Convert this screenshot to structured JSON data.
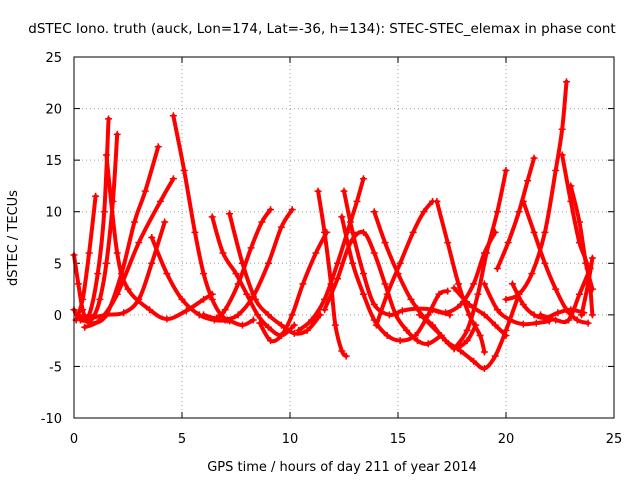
{
  "chart_data": {
    "type": "scatter",
    "title": "dSTEC Iono. truth (auck, Lon=174, Lat=-36, h=134): STEC-STEC_elemax in phase cont",
    "xlabel": "GPS time / hours of day 211 of year 2014",
    "ylabel": "dSTEC  / TECUs",
    "xlim": [
      0,
      25
    ],
    "ylim": [
      -10,
      25
    ],
    "xticks": [
      0,
      5,
      10,
      15,
      20,
      25
    ],
    "yticks": [
      -10,
      -5,
      0,
      5,
      10,
      15,
      20,
      25
    ],
    "xtick_labels": [
      "0",
      "5",
      "10",
      "15",
      "20",
      "25"
    ],
    "ytick_labels": [
      "-10",
      "-5",
      "0",
      "5",
      "10",
      "15",
      "20",
      "25"
    ],
    "grid": true,
    "legend": "none",
    "marker": "+",
    "color": "#ff0000",
    "series": [
      {
        "points": [
          [
            0,
            5.8
          ],
          [
            0.2,
            3
          ],
          [
            0.4,
            0.5
          ],
          [
            0.6,
            -0.5
          ],
          [
            0.9,
            -0.2
          ],
          [
            1.2,
            1.5
          ],
          [
            1.5,
            5
          ],
          [
            1.8,
            11
          ],
          [
            2.0,
            17.5
          ]
        ]
      },
      {
        "points": [
          [
            0.1,
            -0.5
          ],
          [
            0.4,
            1.5
          ],
          [
            0.7,
            6
          ],
          [
            1.0,
            11.5
          ]
        ]
      },
      {
        "points": [
          [
            0,
            0.5
          ],
          [
            0.3,
            -0.5
          ],
          [
            0.7,
            0
          ],
          [
            1.1,
            4
          ],
          [
            1.4,
            10
          ],
          [
            1.6,
            19
          ]
        ]
      },
      {
        "points": [
          [
            0.2,
            0
          ],
          [
            0.8,
            -0.8
          ],
          [
            1.5,
            0
          ],
          [
            2.2,
            4
          ],
          [
            2.8,
            9
          ],
          [
            3.3,
            12
          ],
          [
            3.9,
            16.3
          ]
        ]
      },
      {
        "points": [
          [
            1.5,
            15.5
          ],
          [
            2.0,
            6
          ],
          [
            2.5,
            2.5
          ],
          [
            3.5,
            0.5
          ],
          [
            4.3,
            -0.4
          ],
          [
            5.2,
            0.4
          ],
          [
            6.0,
            1.5
          ],
          [
            6.4,
            2
          ]
        ]
      },
      {
        "points": [
          [
            0.5,
            -1.2
          ],
          [
            1.2,
            -0.5
          ],
          [
            2.0,
            2
          ],
          [
            3.0,
            7
          ],
          [
            4.0,
            11
          ],
          [
            4.6,
            13.2
          ]
        ]
      },
      {
        "points": [
          [
            0.8,
            -0.3
          ],
          [
            1.5,
            0
          ],
          [
            2.3,
            0.2
          ],
          [
            3.0,
            1.5
          ],
          [
            3.6,
            5
          ],
          [
            4.2,
            9
          ]
        ]
      },
      {
        "points": [
          [
            4.6,
            19.3
          ],
          [
            5.1,
            14
          ],
          [
            5.6,
            8
          ],
          [
            6.0,
            4
          ],
          [
            6.4,
            1.5
          ],
          [
            6.8,
            0
          ],
          [
            7.1,
            -0.5
          ]
        ]
      },
      {
        "points": [
          [
            3.6,
            7.5
          ],
          [
            4.3,
            4
          ],
          [
            5.0,
            1.5
          ],
          [
            5.8,
            0
          ],
          [
            6.5,
            -0.5
          ],
          [
            7.2,
            -0.6
          ],
          [
            7.8,
            -1.0
          ],
          [
            8.3,
            -0.5
          ]
        ]
      },
      {
        "points": [
          [
            6.4,
            9.5
          ],
          [
            6.9,
            6
          ],
          [
            7.5,
            4
          ],
          [
            8.0,
            2
          ],
          [
            8.5,
            0
          ],
          [
            9.0,
            -1.2
          ],
          [
            9.6,
            -2.0
          ],
          [
            10.2,
            -1.0
          ]
        ]
      },
      {
        "points": [
          [
            7.2,
            9.8
          ],
          [
            7.8,
            5
          ],
          [
            8.4,
            1.5
          ],
          [
            9.0,
            0
          ],
          [
            9.6,
            -1.0
          ],
          [
            10.2,
            -1.8
          ],
          [
            10.8,
            -1.5
          ],
          [
            11.4,
            0
          ]
        ]
      },
      {
        "points": [
          [
            6.0,
            0
          ],
          [
            6.6,
            -0.3
          ],
          [
            7.0,
            0.5
          ],
          [
            7.6,
            3
          ],
          [
            8.2,
            6.5
          ],
          [
            8.7,
            9
          ],
          [
            9.1,
            10.2
          ]
        ]
      },
      {
        "points": [
          [
            7.0,
            -0.5
          ],
          [
            7.6,
            0
          ],
          [
            8.3,
            1.8
          ],
          [
            9.0,
            5
          ],
          [
            9.6,
            8.5
          ],
          [
            10.1,
            10.2
          ]
        ]
      },
      {
        "points": [
          [
            8.6,
            -0.8
          ],
          [
            9.1,
            -2.5
          ],
          [
            9.6,
            -2.0
          ],
          [
            10.1,
            0
          ],
          [
            10.6,
            3
          ],
          [
            11.2,
            6
          ],
          [
            11.7,
            8
          ]
        ]
      },
      {
        "points": [
          [
            10.4,
            -1.5
          ],
          [
            11.0,
            -0.5
          ],
          [
            11.6,
            1.5
          ],
          [
            12.2,
            5
          ],
          [
            12.8,
            9
          ],
          [
            13.1,
            11
          ],
          [
            13.4,
            13.2
          ]
        ]
      },
      {
        "points": [
          [
            11.3,
            12
          ],
          [
            11.6,
            8
          ],
          [
            11.9,
            3
          ],
          [
            12.1,
            -1
          ],
          [
            12.4,
            -3.5
          ],
          [
            12.6,
            -4
          ]
        ]
      },
      {
        "points": [
          [
            11.6,
            0.5
          ],
          [
            12.2,
            3.5
          ],
          [
            12.8,
            7
          ],
          [
            13.4,
            8
          ],
          [
            13.9,
            6
          ],
          [
            14.4,
            3
          ],
          [
            14.9,
            0
          ],
          [
            15.4,
            -1.5
          ],
          [
            15.9,
            -2.5
          ],
          [
            16.4,
            -2.8
          ],
          [
            17.0,
            -2
          ]
        ]
      },
      {
        "points": [
          [
            12.5,
            12
          ],
          [
            12.9,
            8
          ],
          [
            13.4,
            4
          ],
          [
            13.9,
            1
          ],
          [
            14.6,
            0
          ],
          [
            15.2,
            0.4
          ],
          [
            15.9,
            0.6
          ],
          [
            16.6,
            0.5
          ],
          [
            17.4,
            0
          ]
        ]
      },
      {
        "points": [
          [
            13.9,
            10
          ],
          [
            14.4,
            7
          ],
          [
            15.0,
            4
          ],
          [
            15.6,
            1.5
          ],
          [
            16.3,
            -0.5
          ],
          [
            17.0,
            -2
          ],
          [
            17.6,
            -3.2
          ],
          [
            18.2,
            -2.5
          ],
          [
            18.6,
            -1
          ]
        ]
      },
      {
        "points": [
          [
            14.0,
            -1
          ],
          [
            14.5,
            2
          ],
          [
            15.1,
            5
          ],
          [
            15.7,
            8
          ],
          [
            16.2,
            10
          ],
          [
            16.6,
            11
          ]
        ]
      },
      {
        "points": [
          [
            12.4,
            9.5
          ],
          [
            12.9,
            5
          ],
          [
            13.4,
            2
          ],
          [
            13.9,
            -0.5
          ],
          [
            14.5,
            -2
          ],
          [
            15.1,
            -2.5
          ],
          [
            15.8,
            -2
          ],
          [
            16.4,
            0
          ],
          [
            16.9,
            2
          ],
          [
            17.3,
            2.3
          ]
        ]
      },
      {
        "points": [
          [
            16.8,
            11
          ],
          [
            17.3,
            7
          ],
          [
            17.8,
            3
          ],
          [
            18.3,
            0
          ],
          [
            18.8,
            -2
          ],
          [
            19.0,
            -3.6
          ]
        ]
      },
      {
        "points": [
          [
            16.0,
            0
          ],
          [
            16.6,
            -1
          ],
          [
            17.2,
            -2.5
          ],
          [
            17.9,
            -3.5
          ],
          [
            18.5,
            -4.5
          ],
          [
            19.0,
            -5.2
          ],
          [
            19.5,
            -4
          ],
          [
            20.0,
            -1.5
          ],
          [
            20.6,
            2
          ]
        ]
      },
      {
        "points": [
          [
            16.6,
            0.5
          ],
          [
            17.2,
            0.2
          ],
          [
            17.9,
            1
          ],
          [
            18.5,
            3
          ],
          [
            19.0,
            6
          ],
          [
            19.5,
            8
          ]
        ]
      },
      {
        "points": [
          [
            17.6,
            -3.3
          ],
          [
            18.2,
            -1.5
          ],
          [
            18.7,
            2
          ],
          [
            19.1,
            6
          ],
          [
            19.6,
            10
          ],
          [
            20.0,
            14
          ]
        ]
      },
      {
        "points": [
          [
            17.6,
            2.6
          ],
          [
            18.3,
            1
          ],
          [
            19.0,
            0
          ],
          [
            19.5,
            -1
          ],
          [
            20.0,
            -2
          ]
        ]
      },
      {
        "points": [
          [
            19.0,
            3
          ],
          [
            19.6,
            0.5
          ],
          [
            20.2,
            -0.5
          ],
          [
            20.8,
            -0.9
          ],
          [
            21.4,
            -0.8
          ],
          [
            22.0,
            -0.6
          ]
        ]
      },
      {
        "points": [
          [
            19.6,
            4.5
          ],
          [
            20.1,
            7
          ],
          [
            20.6,
            10
          ],
          [
            21.0,
            13
          ],
          [
            21.3,
            15.2
          ]
        ]
      },
      {
        "points": [
          [
            20.3,
            3
          ],
          [
            20.8,
            1
          ],
          [
            21.3,
            0
          ],
          [
            21.8,
            -0.3
          ],
          [
            22.4,
            0.2
          ],
          [
            23.0,
            0.5
          ],
          [
            23.6,
            0.2
          ]
        ]
      },
      {
        "points": [
          [
            20.8,
            11
          ],
          [
            21.3,
            8
          ],
          [
            21.8,
            5
          ],
          [
            22.3,
            2.5
          ],
          [
            22.8,
            0.5
          ],
          [
            23.3,
            -0.5
          ],
          [
            23.8,
            -0.8
          ]
        ]
      },
      {
        "points": [
          [
            20.0,
            1.5
          ],
          [
            20.6,
            2
          ],
          [
            21.2,
            4
          ],
          [
            21.8,
            8
          ],
          [
            22.3,
            14
          ],
          [
            22.6,
            18
          ],
          [
            22.8,
            22.6
          ]
        ]
      },
      {
        "points": [
          [
            22.6,
            15.5
          ],
          [
            23.0,
            11
          ],
          [
            23.4,
            7
          ],
          [
            23.8,
            4.5
          ],
          [
            24.0,
            0
          ]
        ]
      },
      {
        "points": [
          [
            23.0,
            12.5
          ],
          [
            23.4,
            9
          ],
          [
            23.7,
            5
          ],
          [
            24.0,
            2.5
          ]
        ]
      },
      {
        "points": [
          [
            23.5,
            0
          ],
          [
            23.8,
            3
          ],
          [
            24.0,
            5.5
          ]
        ]
      },
      {
        "points": [
          [
            21.6,
            0
          ],
          [
            22.3,
            -0.5
          ],
          [
            22.9,
            -0.5
          ],
          [
            23.4,
            2
          ],
          [
            23.9,
            4.5
          ]
        ]
      }
    ]
  }
}
